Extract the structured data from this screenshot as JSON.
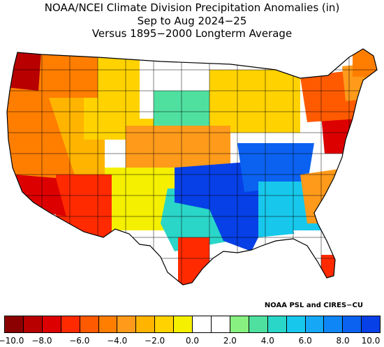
{
  "title": {
    "line1": "NOAA/NCEI Climate Division Precipitation Anomalies (in)",
    "line2": "Sep to Aug 2024−25",
    "line3": "Versus 1895−2000 Longterm Average"
  },
  "credit": "NOAA PSL and CIRES−CU",
  "legend": {
    "colors": [
      "#8b0000",
      "#b80000",
      "#dd0000",
      "#ff2a00",
      "#ff5a00",
      "#ff7e00",
      "#ff9a1a",
      "#ffb400",
      "#ffd200",
      "#f5ef00",
      "#ffffff",
      "#ffffff",
      "#88f080",
      "#4fe0a0",
      "#2ad6c8",
      "#17c8ec",
      "#16a8f7",
      "#0f86f5",
      "#0b62f0",
      "#0640e6"
    ],
    "ticks": [
      "−10.0",
      "−8.0",
      "−6.0",
      "−4.0",
      "−2.0",
      "0.0",
      "2.0",
      "4.0",
      "6.0",
      "8.0",
      "10.0"
    ]
  },
  "map_regions": [
    {
      "region": "pacific-northwest-coast",
      "color": "#b80000"
    },
    {
      "region": "northwest-interior",
      "color": "#ff7e00"
    },
    {
      "region": "california",
      "color": "#ff7e00"
    },
    {
      "region": "southern-california",
      "color": "#dd0000"
    },
    {
      "region": "great-basin",
      "color": "#ffb400"
    },
    {
      "region": "arizona",
      "color": "#ff2a00"
    },
    {
      "region": "northern-rockies",
      "color": "#ffd200"
    },
    {
      "region": "northern-plains",
      "color": "#ffffff"
    },
    {
      "region": "central-plains",
      "color": "#ff9a1a"
    },
    {
      "region": "southern-plains-west",
      "color": "#f5ef00"
    },
    {
      "region": "texas-central",
      "color": "#2ad6c8"
    },
    {
      "region": "texas-gulf-coast",
      "color": "#ff2a00"
    },
    {
      "region": "mississippi-valley",
      "color": "#0640e6"
    },
    {
      "region": "ohio-valley",
      "color": "#0b62f0"
    },
    {
      "region": "upper-midwest",
      "color": "#4fe0a0"
    },
    {
      "region": "great-lakes",
      "color": "#ffd200"
    },
    {
      "region": "southeast",
      "color": "#17c8ec"
    },
    {
      "region": "carolinas-coast",
      "color": "#ff9a1a"
    },
    {
      "region": "florida",
      "color": "#ffffff"
    },
    {
      "region": "south-florida",
      "color": "#ff2a00"
    },
    {
      "region": "mid-atlantic",
      "color": "#dd0000"
    },
    {
      "region": "northeast",
      "color": "#ff5a00"
    },
    {
      "region": "new-england",
      "color": "#ff9a1a"
    },
    {
      "region": "maine",
      "color": "#ff7e00"
    }
  ]
}
